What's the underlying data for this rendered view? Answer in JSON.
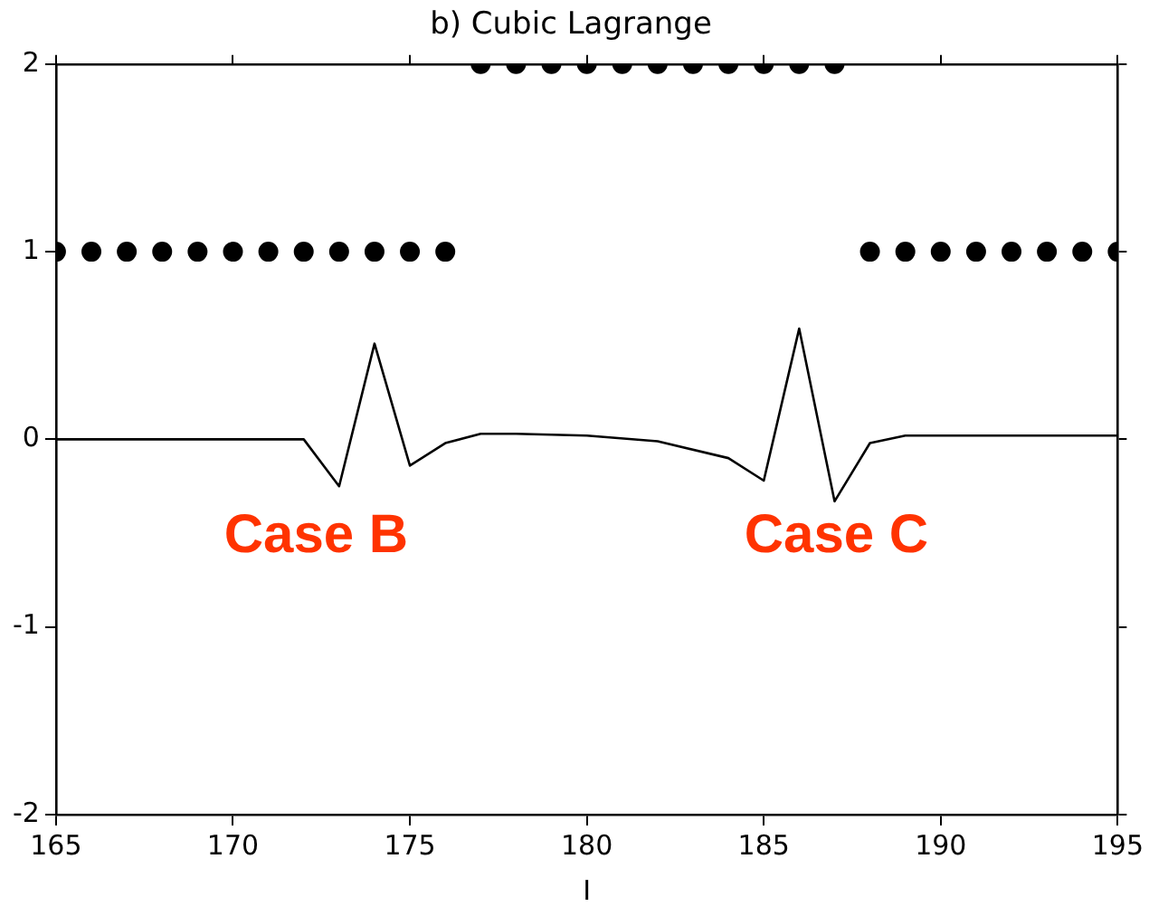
{
  "chart_data": {
    "type": "line",
    "title": "b) Cubic Lagrange",
    "xlabel": "I",
    "xlim": [
      165,
      195
    ],
    "xticks": [
      165,
      170,
      175,
      180,
      185,
      190,
      195
    ],
    "ylim": [
      -2,
      2
    ],
    "yticks": [
      -2,
      -1,
      0,
      1,
      2
    ],
    "grid": false,
    "legend": false,
    "series": [
      {
        "type": "scatter",
        "color": "#000000",
        "marker": "circle",
        "x": [
          165,
          166,
          167,
          168,
          169,
          170,
          171,
          172,
          173,
          174,
          175,
          176,
          177,
          178,
          179,
          180,
          181,
          182,
          183,
          184,
          185,
          186,
          187,
          188,
          189,
          190,
          191,
          192,
          193,
          194,
          195
        ],
        "values": [
          1,
          1,
          1,
          1,
          1,
          1,
          1,
          1,
          1,
          1,
          1,
          1,
          2,
          2,
          2,
          2,
          2,
          2,
          2,
          2,
          2,
          2,
          2,
          1,
          1,
          1,
          1,
          1,
          1,
          1,
          1
        ]
      },
      {
        "type": "line",
        "color": "#000000",
        "marker": "none",
        "line_style": "solid",
        "x": [
          165,
          168,
          170,
          172,
          173,
          174,
          175,
          176,
          177,
          178,
          180,
          182,
          184,
          185,
          186,
          187,
          188,
          189,
          190,
          195
        ],
        "values": [
          0,
          0,
          0,
          0,
          -0.25,
          0.51,
          -0.14,
          -0.02,
          0.03,
          0.03,
          0.02,
          -0.01,
          -0.1,
          -0.22,
          0.59,
          -0.33,
          -0.02,
          0.02,
          0.02,
          0.02
        ]
      }
    ],
    "annotations": [
      "Case B",
      "Case C"
    ]
  }
}
